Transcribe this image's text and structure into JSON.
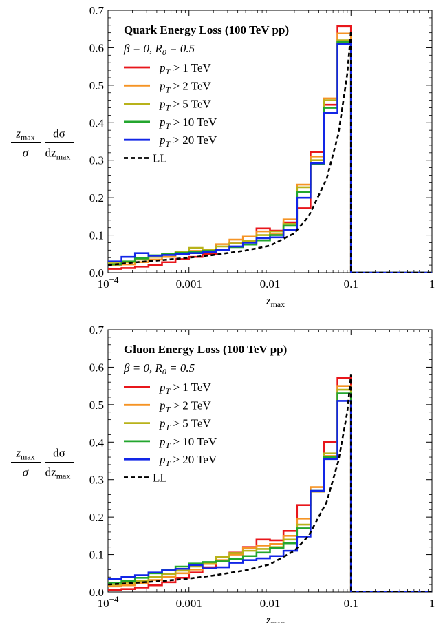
{
  "chart_data": [
    {
      "type": "line",
      "title": "Quark Energy Loss (100 TeV pp)",
      "subtitle": "β = 0, R₀ = 0.5",
      "xlabel": "z_max",
      "ylabel": "z_max/σ dσ/dz_max",
      "xscale": "log",
      "xlim": [
        0.0001,
        1
      ],
      "ylim": [
        0,
        0.7
      ],
      "x_ticks": [
        "10^-4",
        "0.001",
        "0.01",
        "0.1",
        "1"
      ],
      "y_ticks": [
        "0.0",
        "0.1",
        "0.2",
        "0.3",
        "0.4",
        "0.5",
        "0.6",
        "0.7"
      ],
      "legend_position": "top-left",
      "bin_edges": [
        0.0001,
        0.0001468,
        0.0002154,
        0.0003162,
        0.0004642,
        0.0006813,
        0.001,
        0.001468,
        0.002154,
        0.003162,
        0.004642,
        0.006813,
        0.01,
        0.01468,
        0.02154,
        0.03162,
        0.04642,
        0.06813,
        0.1
      ],
      "series": [
        {
          "name": "pT > 1 TeV",
          "color": "#e8161b",
          "style": "step",
          "values": [
            0.01,
            0.012,
            0.016,
            0.02,
            0.028,
            0.036,
            0.042,
            0.05,
            0.062,
            0.078,
            0.096,
            0.118,
            0.112,
            0.134,
            0.172,
            0.322,
            0.448,
            0.658
          ]
        },
        {
          "name": "pT > 2 TeV",
          "color": "#f59425",
          "style": "step",
          "values": [
            0.02,
            0.022,
            0.028,
            0.035,
            0.042,
            0.052,
            0.058,
            0.062,
            0.076,
            0.088,
            0.096,
            0.11,
            0.102,
            0.142,
            0.235,
            0.31,
            0.465,
            0.638
          ]
        },
        {
          "name": "pT > 5 TeV",
          "color": "#b8b21a",
          "style": "step",
          "values": [
            0.025,
            0.028,
            0.035,
            0.042,
            0.05,
            0.055,
            0.066,
            0.06,
            0.07,
            0.078,
            0.085,
            0.1,
            0.11,
            0.13,
            0.228,
            0.3,
            0.46,
            0.62
          ]
        },
        {
          "name": "pT > 10 TeV",
          "color": "#23a62e",
          "style": "step",
          "values": [
            0.022,
            0.03,
            0.038,
            0.046,
            0.05,
            0.053,
            0.055,
            0.058,
            0.062,
            0.068,
            0.075,
            0.086,
            0.1,
            0.125,
            0.215,
            0.29,
            0.44,
            0.615
          ]
        },
        {
          "name": "pT > 20 TeV",
          "color": "#1226e6",
          "style": "step",
          "values": [
            0.03,
            0.042,
            0.052,
            0.045,
            0.047,
            0.05,
            0.052,
            0.055,
            0.06,
            0.07,
            0.08,
            0.092,
            0.094,
            0.114,
            0.2,
            0.292,
            0.426,
            0.61
          ]
        },
        {
          "name": "LL",
          "color": "#000000",
          "style": "dashed",
          "x": [
            0.0001,
            0.0002,
            0.0005,
            0.001,
            0.002,
            0.005,
            0.01,
            0.02,
            0.03,
            0.05,
            0.07,
            0.09,
            0.1
          ],
          "values": [
            0.02,
            0.027,
            0.034,
            0.04,
            0.047,
            0.059,
            0.072,
            0.105,
            0.15,
            0.25,
            0.37,
            0.53,
            0.645
          ]
        }
      ]
    },
    {
      "type": "line",
      "title": "Gluon Energy Loss (100 TeV pp)",
      "subtitle": "β = 0, R₀ = 0.5",
      "xlabel": "z_max",
      "ylabel": "z_max/σ dσ/dz_max",
      "xscale": "log",
      "xlim": [
        0.0001,
        1
      ],
      "ylim": [
        0,
        0.7
      ],
      "x_ticks": [
        "10^-4",
        "0.001",
        "0.01",
        "0.1",
        "1"
      ],
      "y_ticks": [
        "0.0",
        "0.1",
        "0.2",
        "0.3",
        "0.4",
        "0.5",
        "0.6",
        "0.7"
      ],
      "legend_position": "top-left",
      "bin_edges": [
        0.0001,
        0.0001468,
        0.0002154,
        0.0003162,
        0.0004642,
        0.0006813,
        0.001,
        0.001468,
        0.002154,
        0.003162,
        0.004642,
        0.006813,
        0.01,
        0.01468,
        0.02154,
        0.03162,
        0.04642,
        0.06813,
        0.1
      ],
      "series": [
        {
          "name": "pT > 1 TeV",
          "color": "#e8161b",
          "style": "step",
          "values": [
            0.005,
            0.008,
            0.012,
            0.018,
            0.026,
            0.038,
            0.052,
            0.066,
            0.082,
            0.105,
            0.12,
            0.14,
            0.138,
            0.163,
            0.232,
            0.268,
            0.4,
            0.572
          ]
        },
        {
          "name": "pT > 2 TeV",
          "color": "#f59425",
          "style": "step",
          "values": [
            0.015,
            0.018,
            0.024,
            0.032,
            0.04,
            0.05,
            0.06,
            0.075,
            0.085,
            0.1,
            0.117,
            0.124,
            0.128,
            0.15,
            0.196,
            0.28,
            0.363,
            0.55
          ]
        },
        {
          "name": "pT > 5 TeV",
          "color": "#b8b21a",
          "style": "step",
          "values": [
            0.02,
            0.025,
            0.03,
            0.04,
            0.048,
            0.057,
            0.068,
            0.078,
            0.094,
            0.104,
            0.11,
            0.115,
            0.12,
            0.14,
            0.18,
            0.268,
            0.37,
            0.54
          ]
        },
        {
          "name": "pT > 10 TeV",
          "color": "#23a62e",
          "style": "step",
          "values": [
            0.025,
            0.03,
            0.038,
            0.05,
            0.06,
            0.068,
            0.076,
            0.08,
            0.082,
            0.088,
            0.096,
            0.105,
            0.118,
            0.13,
            0.17,
            0.27,
            0.36,
            0.53
          ]
        },
        {
          "name": "pT > 20 TeV",
          "color": "#1226e6",
          "style": "step",
          "values": [
            0.035,
            0.04,
            0.045,
            0.052,
            0.058,
            0.062,
            0.072,
            0.063,
            0.066,
            0.078,
            0.085,
            0.09,
            0.096,
            0.11,
            0.148,
            0.27,
            0.355,
            0.51
          ]
        },
        {
          "name": "LL",
          "color": "#000000",
          "style": "dashed",
          "x": [
            0.0001,
            0.0002,
            0.0005,
            0.001,
            0.002,
            0.005,
            0.01,
            0.02,
            0.03,
            0.05,
            0.07,
            0.09,
            0.1
          ],
          "values": [
            0.02,
            0.024,
            0.03,
            0.036,
            0.044,
            0.058,
            0.074,
            0.11,
            0.15,
            0.24,
            0.35,
            0.48,
            0.58
          ]
        }
      ]
    }
  ],
  "panels": [
    {
      "title": "Quark Energy Loss (100 TeV pp)",
      "param_beta": "β = 0, ",
      "param_r": "R",
      "param_r_sub": "0",
      "param_r_val": " = 0.5",
      "legend": [
        {
          "p": "p",
          "sub": "T",
          "rest": " > 1 TeV",
          "color": "#e8161b"
        },
        {
          "p": "p",
          "sub": "T",
          "rest": " > 2 TeV",
          "color": "#f59425"
        },
        {
          "p": "p",
          "sub": "T",
          "rest": " > 5 TeV",
          "color": "#b8b21a"
        },
        {
          "p": "p",
          "sub": "T",
          "rest": " > 10 TeV",
          "color": "#23a62e"
        },
        {
          "p": "p",
          "sub": "T",
          "rest": " > 20 TeV",
          "color": "#1226e6"
        },
        {
          "p": "",
          "sub": "",
          "rest": "LL",
          "color": "#000000",
          "dashed": true
        }
      ]
    },
    {
      "title": "Gluon Energy Loss (100 TeV pp)",
      "param_beta": "β = 0, ",
      "param_r": "R",
      "param_r_sub": "0",
      "param_r_val": " = 0.5",
      "legend": [
        {
          "p": "p",
          "sub": "T",
          "rest": " > 1 TeV",
          "color": "#e8161b"
        },
        {
          "p": "p",
          "sub": "T",
          "rest": " > 2 TeV",
          "color": "#f59425"
        },
        {
          "p": "p",
          "sub": "T",
          "rest": " > 5 TeV",
          "color": "#b8b21a"
        },
        {
          "p": "p",
          "sub": "T",
          "rest": " > 10 TeV",
          "color": "#23a62e"
        },
        {
          "p": "p",
          "sub": "T",
          "rest": " > 20 TeV",
          "color": "#1226e6"
        },
        {
          "p": "",
          "sub": "",
          "rest": "LL",
          "color": "#000000",
          "dashed": true
        }
      ]
    }
  ],
  "axis_text": {
    "x_tick_base": "10",
    "x_tick_exp": "−4",
    "x_ticks_rest": [
      "0.001",
      "0.01",
      "0.1",
      "1"
    ],
    "y_ticks": [
      "0.0",
      "0.1",
      "0.2",
      "0.3",
      "0.4",
      "0.5",
      "0.6",
      "0.7"
    ],
    "xlabel_z": "z",
    "xlabel_sub": "max",
    "ylabel_num_left_z": "z",
    "ylabel_num_left_sub": "max",
    "ylabel_den_left": "σ",
    "ylabel_num_right": "dσ",
    "ylabel_den_right_d": "dz",
    "ylabel_den_right_sub": "max"
  }
}
